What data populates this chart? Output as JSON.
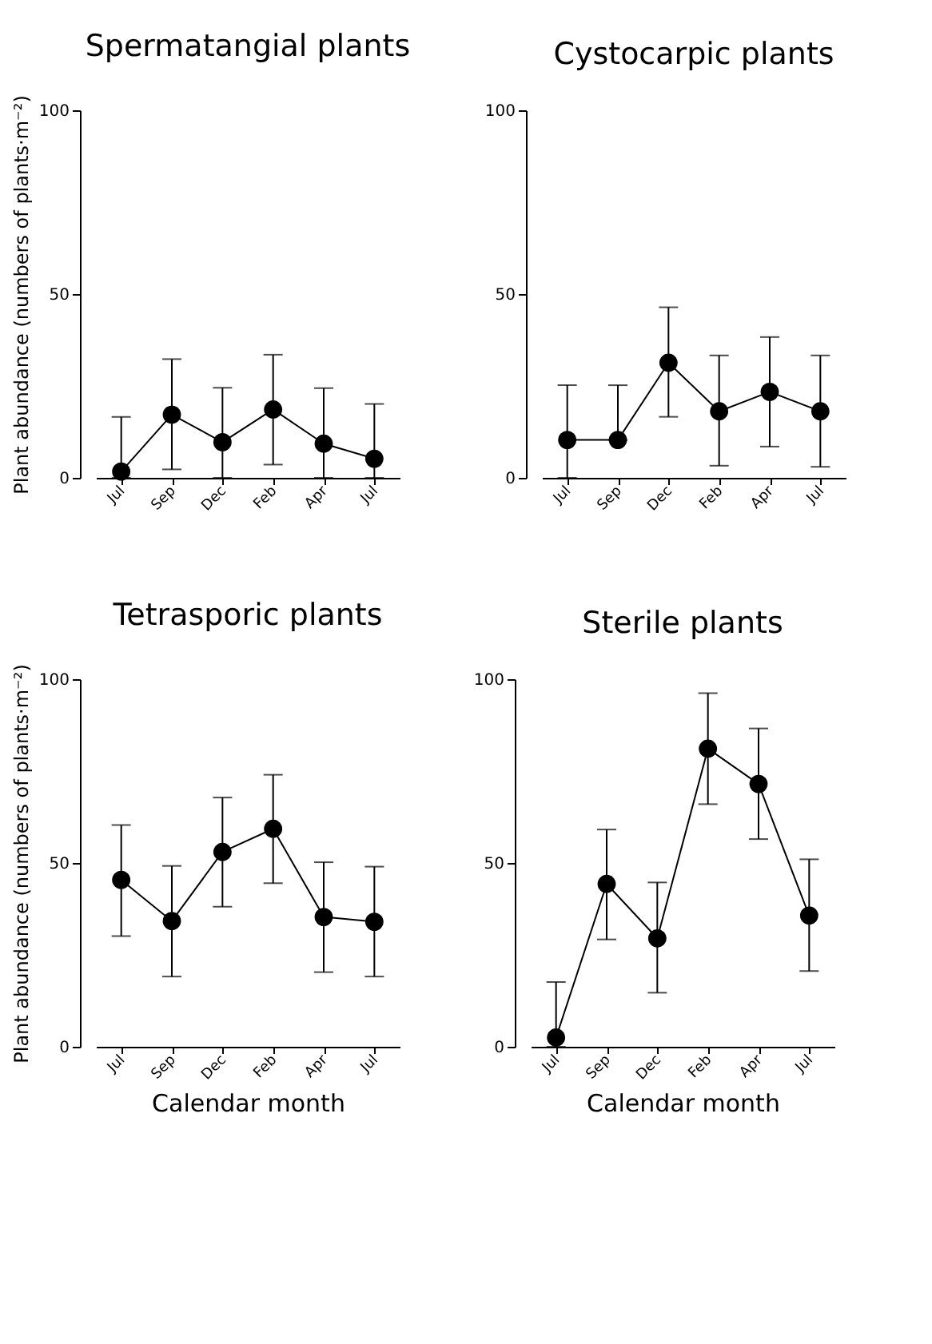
{
  "chart_data": [
    {
      "type": "line",
      "title": "Spermatangial plants",
      "ylabel": "Plant abundance (numbers of plants·m⁻²)",
      "categories": [
        "Jul",
        "Sep",
        "Dec",
        "Feb",
        "Apr",
        "Jul"
      ],
      "values": [
        1.7,
        17.2,
        9.7,
        18.6,
        9.3,
        5.2
      ],
      "errors": [
        [
          0,
          16.6
        ],
        [
          2.3,
          32.3
        ],
        [
          0,
          24.5
        ],
        [
          3.6,
          33.5
        ],
        [
          0,
          24.4
        ],
        [
          0,
          20.1
        ]
      ],
      "color": "#000000",
      "marker": "circle",
      "line_style": "solid",
      "ylim": [
        0,
        100
      ],
      "yticks": [
        0,
        50,
        100
      ]
    },
    {
      "type": "line",
      "title": "Cystocarpic plants",
      "categories": [
        "Jul",
        "Sep",
        "Dec",
        "Feb",
        "Apr",
        "Jul"
      ],
      "values": [
        10.3,
        10.3,
        31.3,
        18.1,
        23.4,
        18.1
      ],
      "errors": [
        [
          0,
          25.2
        ],
        [
          10.3,
          25.2
        ],
        [
          16.6,
          46.4
        ],
        [
          3.3,
          33.3
        ],
        [
          8.5,
          38.3
        ],
        [
          3,
          33.3
        ]
      ],
      "color": "#000000",
      "marker": "circle",
      "line_style": "solid",
      "ylim": [
        0,
        100
      ],
      "yticks": [
        0,
        50,
        100
      ]
    },
    {
      "type": "line",
      "title": "Tetrasporic plants",
      "xlabel": "Calendar month",
      "ylabel": "Plant abundance (numbers of plants·m⁻²)",
      "categories": [
        "Jul",
        "Sep",
        "Dec",
        "Feb",
        "Apr",
        "Jul"
      ],
      "values": [
        45.4,
        34.2,
        53,
        59.3,
        35.3,
        34
      ],
      "errors": [
        [
          30.1,
          60.3
        ],
        [
          19.1,
          49.2
        ],
        [
          38.1,
          67.8
        ],
        [
          44.5,
          74
        ],
        [
          20.3,
          50.2
        ],
        [
          19.1,
          49
        ]
      ],
      "color": "#000000",
      "marker": "circle",
      "line_style": "solid",
      "ylim": [
        0,
        100
      ],
      "yticks": [
        0,
        50,
        100
      ]
    },
    {
      "type": "line",
      "title": "Sterile plants",
      "xlabel": "Calendar month",
      "categories": [
        "Jul",
        "Sep",
        "Dec",
        "Feb",
        "Apr",
        "Jul"
      ],
      "values": [
        2.5,
        44.3,
        29.5,
        81.1,
        71.5,
        35.7
      ],
      "errors": [
        [
          0,
          17.6
        ],
        [
          29.2,
          59.1
        ],
        [
          14.7,
          44.7
        ],
        [
          66,
          96.2
        ],
        [
          56.5,
          86.6
        ],
        [
          20.6,
          51
        ]
      ],
      "color": "#000000",
      "marker": "circle",
      "line_style": "solid",
      "ylim": [
        0,
        100
      ],
      "yticks": [
        0,
        50,
        100
      ]
    }
  ]
}
